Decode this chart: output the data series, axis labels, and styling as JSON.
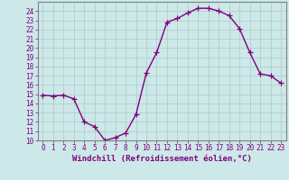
{
  "x": [
    0,
    1,
    2,
    3,
    4,
    5,
    6,
    7,
    8,
    9,
    10,
    11,
    12,
    13,
    14,
    15,
    16,
    17,
    18,
    19,
    20,
    21,
    22,
    23
  ],
  "y": [
    14.9,
    14.8,
    14.9,
    14.5,
    12.0,
    11.5,
    10.0,
    10.3,
    10.8,
    12.8,
    17.3,
    19.5,
    22.8,
    23.2,
    23.8,
    24.3,
    24.3,
    24.0,
    23.5,
    22.1,
    19.5,
    17.2,
    17.0,
    16.2
  ],
  "line_color": "#800080",
  "marker": "+",
  "markersize": 4,
  "linewidth": 1.0,
  "bg_color": "#cce8e8",
  "grid_color": "#b0c8c8",
  "xlabel": "Windchill (Refroidissement éolien,°C)",
  "xlim": [
    -0.5,
    23.5
  ],
  "ylim": [
    10,
    25
  ],
  "yticks": [
    10,
    11,
    12,
    13,
    14,
    15,
    16,
    17,
    18,
    19,
    20,
    21,
    22,
    23,
    24
  ],
  "xticks": [
    0,
    1,
    2,
    3,
    4,
    5,
    6,
    7,
    8,
    9,
    10,
    11,
    12,
    13,
    14,
    15,
    16,
    17,
    18,
    19,
    20,
    21,
    22,
    23
  ],
  "tick_fontsize": 5.5,
  "xlabel_fontsize": 6.5,
  "axis_color": "#800080",
  "tick_color": "#800080",
  "spine_color": "#808080"
}
